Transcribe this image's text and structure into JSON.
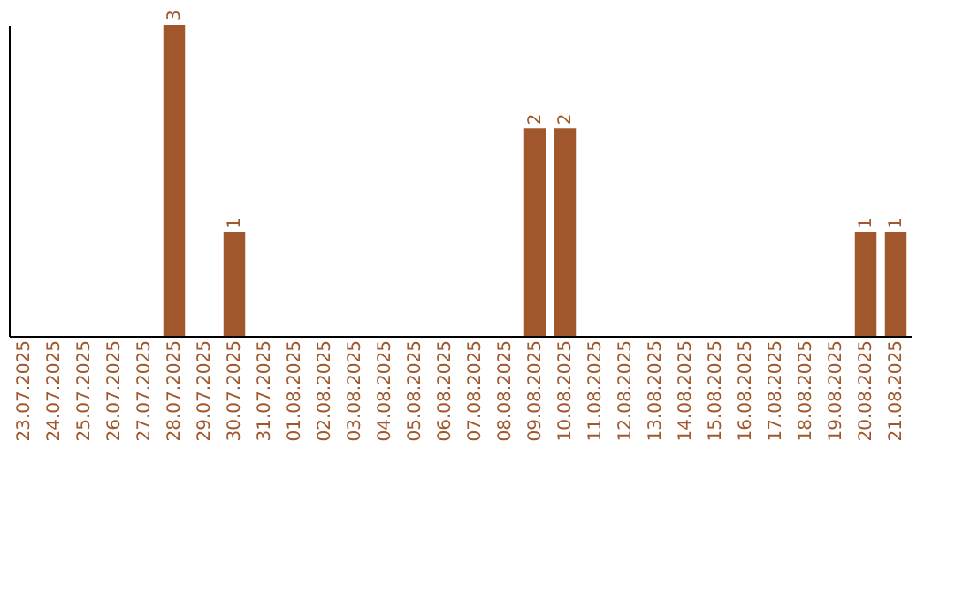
{
  "chart_data": {
    "type": "bar",
    "categories": [
      "23.07.2025",
      "24.07.2025",
      "25.07.2025",
      "26.07.2025",
      "27.07.2025",
      "28.07.2025",
      "29.07.2025",
      "30.07.2025",
      "31.07.2025",
      "01.08.2025",
      "02.08.2025",
      "03.08.2025",
      "04.08.2025",
      "05.08.2025",
      "06.08.2025",
      "07.08.2025",
      "08.08.2025",
      "09.08.2025",
      "10.08.2025",
      "11.08.2025",
      "12.08.2025",
      "13.08.2025",
      "14.08.2025",
      "15.08.2025",
      "16.08.2025",
      "17.08.2025",
      "18.08.2025",
      "19.08.2025",
      "20.08.2025",
      "21.08.2025"
    ],
    "values": [
      0,
      0,
      0,
      0,
      0,
      3,
      0,
      1,
      0,
      0,
      0,
      0,
      0,
      0,
      0,
      0,
      0,
      2,
      2,
      0,
      0,
      0,
      0,
      0,
      0,
      0,
      0,
      0,
      1,
      1
    ],
    "value_labels": [
      null,
      null,
      null,
      null,
      null,
      "3",
      null,
      "1",
      null,
      null,
      null,
      null,
      null,
      null,
      null,
      null,
      null,
      "2",
      "2",
      null,
      null,
      null,
      null,
      null,
      null,
      null,
      null,
      null,
      "1",
      "1"
    ],
    "color": "#a0572b",
    "grid": false,
    "tick_labels": "x"
  }
}
